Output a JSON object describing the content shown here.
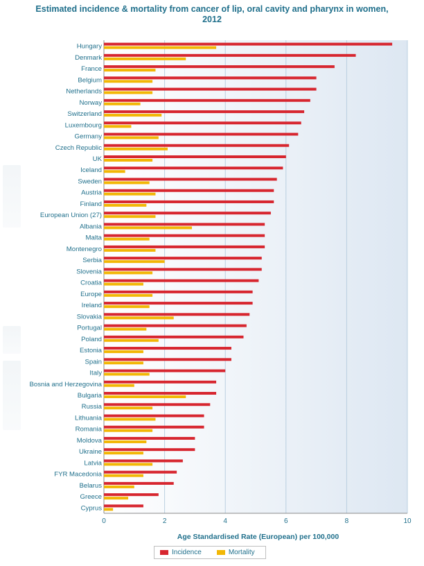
{
  "chart_data": {
    "type": "bar",
    "orientation": "horizontal",
    "title_lines": [
      "Estimated incidence & mortality from cancer of lip, oral cavity and pharynx in women,",
      "2012"
    ],
    "xlabel": "Age Standardised Rate (European) per 100,000",
    "ylabel": "",
    "xlim": [
      0,
      10
    ],
    "xticks": [
      0,
      2,
      4,
      6,
      8,
      10
    ],
    "grid": true,
    "legend_position": "bottom",
    "categories": [
      "Hungary",
      "Denmark",
      "France",
      "Belgium",
      "Netherlands",
      "Norway",
      "Switzerland",
      "Luxembourg",
      "Germany",
      "Czech Republic",
      "UK",
      "Iceland",
      "Sweden",
      "Austria",
      "Finland",
      "European Union (27)",
      "Albania",
      "Malta",
      "Montenegro",
      "Serbia",
      "Slovenia",
      "Croatia",
      "Europe",
      "Ireland",
      "Slovakia",
      "Portugal",
      "Poland",
      "Estonia",
      "Spain",
      "Italy",
      "Bosnia and Herzegovina",
      "Bulgaria",
      "Russia",
      "Lithuania",
      "Romania",
      "Moldova",
      "Ukraine",
      "Latvia",
      "FYR Macedonia",
      "Belarus",
      "Greece",
      "Cyprus"
    ],
    "series": [
      {
        "name": "Incidence",
        "color": "#d7262f",
        "values": [
          9.5,
          8.3,
          7.6,
          7.0,
          7.0,
          6.8,
          6.6,
          6.5,
          6.4,
          6.1,
          6.0,
          5.9,
          5.7,
          5.6,
          5.6,
          5.5,
          5.3,
          5.3,
          5.3,
          5.2,
          5.2,
          5.1,
          4.9,
          4.9,
          4.8,
          4.7,
          4.6,
          4.2,
          4.2,
          4.0,
          3.7,
          3.7,
          3.5,
          3.3,
          3.3,
          3.0,
          3.0,
          2.6,
          2.4,
          2.3,
          1.8,
          1.3
        ]
      },
      {
        "name": "Mortality",
        "color": "#f2b705",
        "values": [
          3.7,
          2.7,
          1.7,
          1.6,
          1.6,
          1.2,
          1.9,
          0.9,
          1.8,
          2.1,
          1.6,
          0.7,
          1.5,
          1.7,
          1.4,
          1.7,
          2.9,
          1.5,
          1.7,
          2.0,
          1.6,
          1.3,
          1.6,
          1.5,
          2.3,
          1.4,
          1.8,
          1.3,
          1.3,
          1.5,
          1.0,
          2.7,
          1.6,
          1.7,
          1.6,
          1.4,
          1.3,
          1.6,
          1.3,
          1.0,
          0.8,
          0.3
        ]
      }
    ]
  }
}
